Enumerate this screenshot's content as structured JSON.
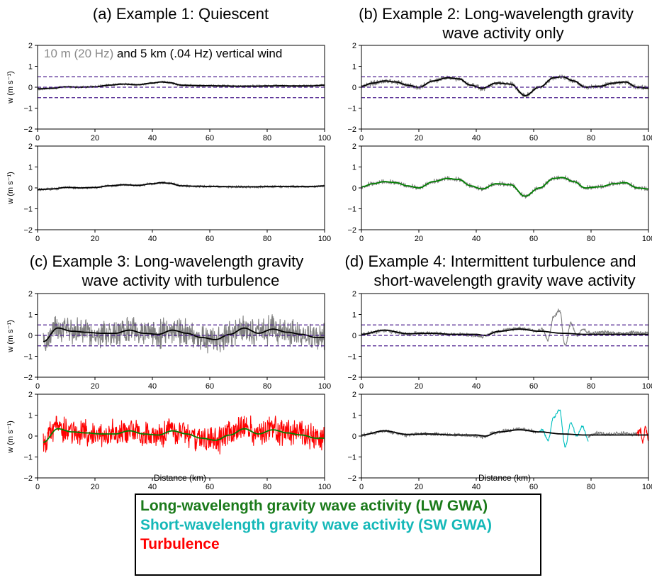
{
  "chart_data": [
    {
      "type": "line",
      "title": "(a) Example 1: Quiescent",
      "annotation": {
        "gray_part": "10 m (20 Hz)",
        "black_part": " and 5 km (.04 Hz) vertical wind"
      },
      "ylabel": "w (m s⁻¹)",
      "xlabel": "",
      "xlim": [
        0,
        100
      ],
      "ylim": [
        -2,
        2
      ],
      "x_ticks": [
        "0",
        "20",
        "40",
        "60",
        "80",
        "100"
      ],
      "y_ticks": [
        "−2",
        "−1",
        "0",
        "1",
        "2"
      ],
      "thresholds": [
        0.5,
        0,
        -0.5
      ],
      "series": [
        {
          "color": "#808080",
          "x": [
            0,
            5,
            10,
            15,
            20,
            25,
            30,
            35,
            40,
            43,
            46,
            50,
            55,
            60,
            65,
            70,
            75,
            80,
            85,
            90,
            95,
            100
          ],
          "values": [
            -0.08,
            -0.05,
            0.02,
            0.0,
            0.02,
            0.1,
            0.15,
            0.12,
            0.2,
            0.25,
            0.22,
            0.1,
            0.08,
            0.07,
            0.06,
            0.05,
            0.05,
            0.06,
            0.07,
            0.06,
            0.06,
            0.1
          ],
          "noise": 0.05
        },
        {
          "color": "#000000",
          "x": [
            0,
            5,
            10,
            15,
            20,
            25,
            30,
            35,
            40,
            43,
            46,
            50,
            55,
            60,
            65,
            70,
            75,
            80,
            85,
            90,
            95,
            100
          ],
          "values": [
            -0.08,
            -0.05,
            0.02,
            0.0,
            0.02,
            0.1,
            0.15,
            0.12,
            0.2,
            0.25,
            0.22,
            0.1,
            0.08,
            0.07,
            0.06,
            0.05,
            0.05,
            0.06,
            0.07,
            0.06,
            0.06,
            0.1
          ]
        }
      ]
    },
    {
      "type": "line",
      "title": "",
      "ylabel": "w (m s⁻¹)",
      "xlabel": "",
      "xlim": [
        0,
        100
      ],
      "ylim": [
        -2,
        2
      ],
      "x_ticks": [
        "0",
        "20",
        "40",
        "60",
        "80",
        "100"
      ],
      "y_ticks": [
        "−2",
        "−1",
        "0",
        "1",
        "2"
      ],
      "series": [
        {
          "color": "#808080",
          "x": [
            0,
            5,
            10,
            15,
            20,
            25,
            30,
            35,
            40,
            43,
            46,
            50,
            55,
            60,
            65,
            70,
            75,
            80,
            85,
            90,
            95,
            100
          ],
          "values": [
            -0.08,
            -0.05,
            0.02,
            0.0,
            0.02,
            0.1,
            0.15,
            0.12,
            0.2,
            0.25,
            0.22,
            0.1,
            0.08,
            0.07,
            0.06,
            0.05,
            0.05,
            0.06,
            0.07,
            0.06,
            0.06,
            0.1
          ],
          "noise": 0.05
        },
        {
          "color": "#000000",
          "x": [
            0,
            5,
            10,
            15,
            20,
            25,
            30,
            35,
            40,
            43,
            46,
            50,
            55,
            60,
            65,
            70,
            75,
            80,
            85,
            90,
            95,
            100
          ],
          "values": [
            -0.08,
            -0.05,
            0.02,
            0.0,
            0.02,
            0.1,
            0.15,
            0.12,
            0.2,
            0.25,
            0.22,
            0.1,
            0.08,
            0.07,
            0.06,
            0.05,
            0.05,
            0.06,
            0.07,
            0.06,
            0.06,
            0.1
          ]
        }
      ]
    },
    {
      "type": "line",
      "title": "(b) Example 2: Long-wavelength gravity wave activity only",
      "ylabel": "",
      "xlabel": "",
      "xlim": [
        0,
        100
      ],
      "ylim": [
        -2,
        2
      ],
      "x_ticks": [
        "0",
        "20",
        "40",
        "60",
        "80",
        "100"
      ],
      "y_ticks": [
        "−2",
        "−1",
        "0",
        "1",
        "2"
      ],
      "thresholds": [
        0.5,
        0,
        -0.5
      ],
      "series": [
        {
          "color": "#808080",
          "x": [
            0,
            4,
            8,
            12,
            16,
            20,
            25,
            30,
            34,
            38,
            42,
            47,
            52,
            57,
            62,
            67,
            70,
            74,
            78,
            83,
            88,
            92,
            96,
            100
          ],
          "values": [
            0.05,
            0.2,
            0.3,
            0.25,
            0.1,
            0.0,
            0.3,
            0.45,
            0.4,
            0.1,
            -0.05,
            0.2,
            0.15,
            -0.4,
            0.0,
            0.45,
            0.5,
            0.3,
            0.0,
            0.05,
            0.2,
            0.25,
            0.0,
            -0.05
          ],
          "noise": 0.09
        },
        {
          "color": "#000000",
          "x": [
            0,
            4,
            8,
            12,
            16,
            20,
            25,
            30,
            34,
            38,
            42,
            47,
            52,
            57,
            62,
            67,
            70,
            74,
            78,
            83,
            88,
            92,
            96,
            100
          ],
          "values": [
            0.05,
            0.2,
            0.3,
            0.25,
            0.1,
            0.0,
            0.3,
            0.45,
            0.4,
            0.1,
            -0.05,
            0.2,
            0.15,
            -0.4,
            0.0,
            0.45,
            0.5,
            0.3,
            0.0,
            0.05,
            0.2,
            0.25,
            0.0,
            -0.05
          ]
        }
      ]
    },
    {
      "type": "line",
      "title": "",
      "ylabel": "",
      "xlabel": "",
      "xlim": [
        0,
        100
      ],
      "ylim": [
        -2,
        2
      ],
      "x_ticks": [
        "0",
        "20",
        "40",
        "60",
        "80",
        "100"
      ],
      "y_ticks": [
        "−2",
        "−1",
        "0",
        "1",
        "2"
      ],
      "series": [
        {
          "color": "#808080",
          "x": [
            0,
            4,
            8,
            12,
            16,
            20,
            25,
            30,
            34,
            38,
            42,
            47,
            52,
            57,
            62,
            67,
            70,
            74,
            78,
            83,
            88,
            92,
            96,
            100
          ],
          "values": [
            0.05,
            0.2,
            0.3,
            0.25,
            0.1,
            0.0,
            0.3,
            0.45,
            0.4,
            0.1,
            -0.05,
            0.2,
            0.15,
            -0.4,
            0.0,
            0.45,
            0.5,
            0.3,
            0.0,
            0.05,
            0.2,
            0.25,
            0.0,
            -0.05
          ],
          "noise": 0.09
        },
        {
          "color": "#008000",
          "x": [
            0,
            4,
            8,
            12,
            16,
            20,
            25,
            30,
            34,
            38,
            42,
            47,
            52,
            57,
            62,
            67,
            70,
            74,
            78,
            83,
            88,
            92,
            96,
            100
          ],
          "values": [
            0.05,
            0.2,
            0.3,
            0.25,
            0.1,
            0.0,
            0.3,
            0.45,
            0.4,
            0.1,
            -0.05,
            0.2,
            0.15,
            -0.4,
            0.0,
            0.45,
            0.5,
            0.3,
            0.0,
            0.05,
            0.2,
            0.25,
            0.0,
            -0.05
          ]
        }
      ]
    },
    {
      "type": "line",
      "title": "(c) Example 3: Long-wavelength gravity wave activity with turbulence",
      "ylabel": "w (m s⁻¹)",
      "xlabel": "",
      "xlim": [
        0,
        100
      ],
      "ylim": [
        -2,
        2
      ],
      "x_ticks": [
        "0",
        "20",
        "40",
        "60",
        "80",
        "100"
      ],
      "y_ticks": [
        "−2",
        "−1",
        "0",
        "1",
        "2"
      ],
      "thresholds": [
        0.5,
        0,
        -0.5
      ],
      "series": [
        {
          "color": "#808080",
          "x": [
            2,
            7,
            12,
            17,
            22,
            27,
            32,
            37,
            42,
            47,
            52,
            57,
            62,
            67,
            72,
            77,
            82,
            87,
            92,
            97,
            100
          ],
          "values": [
            -0.3,
            0.35,
            0.2,
            0.15,
            0.1,
            0.1,
            0.25,
            0.1,
            0.05,
            0.25,
            0.1,
            -0.1,
            -0.2,
            0.05,
            0.35,
            0.1,
            0.3,
            0.15,
            0.05,
            -0.1,
            -0.1
          ],
          "noise": 0.5
        },
        {
          "color": "#000000",
          "x": [
            2,
            7,
            12,
            17,
            22,
            27,
            32,
            37,
            42,
            47,
            52,
            57,
            62,
            67,
            72,
            77,
            82,
            87,
            92,
            97,
            100
          ],
          "values": [
            -0.3,
            0.35,
            0.2,
            0.15,
            0.1,
            0.1,
            0.25,
            0.1,
            0.05,
            0.25,
            0.1,
            -0.1,
            -0.2,
            0.05,
            0.35,
            0.1,
            0.3,
            0.15,
            0.05,
            -0.1,
            -0.1
          ]
        }
      ]
    },
    {
      "type": "line",
      "title": "",
      "ylabel": "w (m s⁻¹)",
      "xlabel": "Distance (km)",
      "xlim": [
        0,
        100
      ],
      "ylim": [
        -2,
        2
      ],
      "x_ticks": [
        "0",
        "20",
        "40",
        "60",
        "80",
        "100"
      ],
      "y_ticks": [
        "−2",
        "−1",
        "0",
        "1",
        "2"
      ],
      "series": [
        {
          "color": "#ff0000",
          "x": [
            2,
            7,
            12,
            17,
            22,
            27,
            32,
            37,
            42,
            47,
            52,
            57,
            62,
            67,
            72,
            77,
            82,
            87,
            92,
            97,
            100
          ],
          "values": [
            -0.3,
            0.35,
            0.2,
            0.15,
            0.1,
            0.1,
            0.25,
            0.1,
            0.05,
            0.25,
            0.1,
            -0.1,
            -0.2,
            0.05,
            0.35,
            0.1,
            0.3,
            0.15,
            0.05,
            -0.1,
            -0.1
          ],
          "noise": 0.5
        },
        {
          "color": "#008000",
          "x": [
            2,
            7,
            12,
            17,
            22,
            27,
            32,
            37,
            42,
            47,
            52,
            57,
            62,
            67,
            72,
            77,
            82,
            87,
            92,
            97,
            100
          ],
          "values": [
            -0.3,
            0.35,
            0.2,
            0.15,
            0.1,
            0.1,
            0.25,
            0.1,
            0.05,
            0.25,
            0.1,
            -0.1,
            -0.2,
            0.05,
            0.35,
            0.1,
            0.3,
            0.15,
            0.05,
            -0.1,
            -0.1
          ]
        }
      ]
    },
    {
      "type": "line",
      "title": "(d) Example 4: Intermittent turbulence and short-wavelength gravity wave activity",
      "ylabel": "",
      "xlabel": "",
      "xlim": [
        0,
        100
      ],
      "ylim": [
        -2,
        2
      ],
      "x_ticks": [
        "0",
        "20",
        "40",
        "60",
        "80",
        "100"
      ],
      "y_ticks": [
        "−2",
        "−1",
        "0",
        "1",
        "2"
      ],
      "thresholds": [
        0.5,
        0,
        -0.5
      ],
      "series": [
        {
          "color": "#808080",
          "x": [
            0,
            4,
            8,
            12,
            16,
            20,
            25,
            30,
            35,
            40,
            43,
            46,
            50,
            55,
            58,
            61,
            63,
            65,
            67,
            69,
            71,
            73,
            75,
            77,
            80,
            85,
            90,
            95,
            100
          ],
          "values": [
            0.05,
            0.15,
            0.25,
            0.15,
            0.05,
            0.1,
            0.1,
            0.05,
            0.05,
            0.0,
            -0.05,
            0.15,
            0.25,
            0.35,
            0.3,
            0.2,
            0.3,
            -0.2,
            0.9,
            1.2,
            -0.5,
            0.6,
            0.0,
            0.3,
            0.1,
            0.15,
            0.1,
            0.15,
            0.1
          ],
          "noise": 0.07
        },
        {
          "color": "#000000",
          "x": [
            0,
            8,
            16,
            24,
            32,
            40,
            43,
            48,
            55,
            62,
            70,
            78,
            86,
            94,
            100
          ],
          "values": [
            0.05,
            0.25,
            0.08,
            0.1,
            0.05,
            0.05,
            0.0,
            0.2,
            0.3,
            0.2,
            0.1,
            0.05,
            0.05,
            0.05,
            0.05
          ]
        }
      ]
    },
    {
      "type": "line",
      "title": "",
      "ylabel": "",
      "xlabel": "Distance (km)",
      "xlim": [
        0,
        100
      ],
      "ylim": [
        -2,
        2
      ],
      "x_ticks": [
        "0",
        "20",
        "40",
        "60",
        "80",
        "100"
      ],
      "y_ticks": [
        "−2",
        "−1",
        "0",
        "1",
        "2"
      ],
      "series": [
        {
          "color": "#808080",
          "x": [
            0,
            4,
            8,
            12,
            16,
            20,
            25,
            30,
            35,
            40,
            43,
            46,
            50,
            55,
            58,
            61,
            62
          ],
          "values": [
            0.05,
            0.15,
            0.25,
            0.15,
            0.05,
            0.1,
            0.1,
            0.05,
            0.05,
            0.0,
            -0.05,
            0.15,
            0.25,
            0.35,
            0.3,
            0.2,
            0.25
          ],
          "noise": 0.07
        },
        {
          "color": "#00bfbf",
          "x": [
            62,
            63,
            65,
            67,
            69,
            71,
            73,
            75,
            77,
            79
          ],
          "values": [
            0.25,
            0.3,
            -0.2,
            0.9,
            1.25,
            -0.5,
            0.65,
            0.0,
            0.45,
            -0.2
          ],
          "noise": 0.05
        },
        {
          "color": "#808080",
          "x": [
            79,
            82,
            86,
            90,
            94,
            96
          ],
          "values": [
            0.0,
            0.15,
            0.1,
            0.15,
            0.1,
            0.1
          ],
          "noise": 0.07
        },
        {
          "color": "#ff0000",
          "x": [
            96,
            97,
            98,
            99,
            100
          ],
          "values": [
            0.1,
            0.3,
            -0.2,
            0.3,
            -0.1
          ],
          "noise": 0.15
        },
        {
          "color": "#000000",
          "x": [
            0,
            8,
            16,
            24,
            32,
            40,
            43,
            48,
            55,
            62,
            70,
            78,
            86,
            94,
            100
          ],
          "values": [
            0.05,
            0.25,
            0.08,
            0.1,
            0.05,
            0.05,
            0.0,
            0.2,
            0.3,
            0.2,
            0.1,
            0.05,
            0.05,
            0.05,
            0.05
          ]
        }
      ]
    }
  ],
  "titles": {
    "a": "(a) Example 1: Quiescent",
    "b1": "(b) Example 2: Long-wavelength gravity",
    "b2": "wave activity only",
    "c1": "(c) Example 3: Long-wavelength gravity",
    "c2": "wave activity with turbulence",
    "d1": "(d) Example 4: Intermittent turbulence and",
    "d2": "short-wavelength gravity wave activity"
  },
  "annotation": {
    "gray_part": "10 m (20 Hz)",
    "black_part": " and 5 km (.04 Hz) vertical wind"
  },
  "ylabel": "w (m s⁻¹)",
  "xlabel": "Distance (km)",
  "legend": [
    {
      "label": "Long-wavelength gravity wave activity (LW GWA)",
      "color": "#1a7a1a"
    },
    {
      "label": "Short-wavelength gravity wave activity (SW GWA)",
      "color": "#14b8b8"
    },
    {
      "label": "Turbulence",
      "color": "#ff0000"
    }
  ]
}
